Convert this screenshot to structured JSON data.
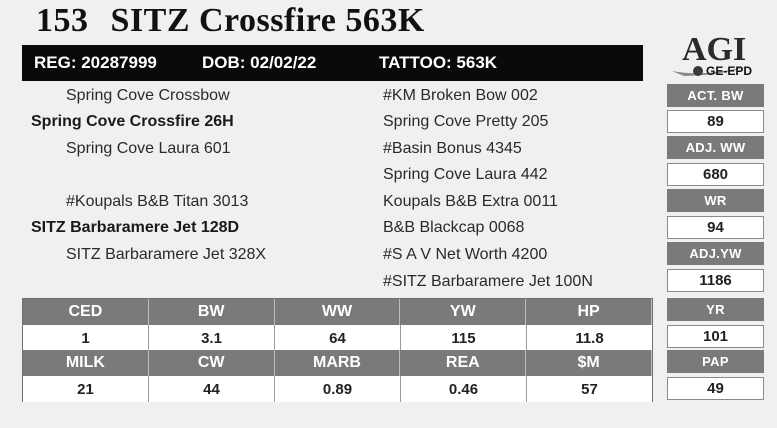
{
  "header": {
    "lot_number": "153",
    "animal_name": "SITZ Crossfire 563K"
  },
  "id_bar": {
    "reg": "REG: 20287999",
    "dob": "DOB: 02/02/22",
    "tattoo": "TATTOO: 563K"
  },
  "logo": {
    "text": "AGI",
    "subtext": "GE-EPD"
  },
  "pedigree": {
    "sire_sire": "Spring Cove Crossbow",
    "sire": "Spring Cove Crossfire 26H",
    "sire_dam": "Spring Cove Laura 601",
    "dam_sire": "#Koupals B&B Titan 3013",
    "dam": "SITZ Barbaramere Jet 128D",
    "dam_dam": "SITZ Barbaramere Jet 328X",
    "g3": [
      "#KM Broken Bow 002",
      "Spring Cove Pretty 205",
      "#Basin Bonus 4345",
      "Spring Cove Laura 442",
      "Koupals B&B Extra 0011",
      "B&B Blackcap 0068",
      "#S A V Net Worth 4200",
      "#SITZ Barbaramere Jet 100N"
    ]
  },
  "side_stats": [
    {
      "label": "ACT. BW",
      "value": "89"
    },
    {
      "label": "ADJ. WW",
      "value": "680"
    },
    {
      "label": "WR",
      "value": "94"
    },
    {
      "label": "ADJ.YW",
      "value": "1186"
    },
    {
      "label": "YR",
      "value": "101"
    },
    {
      "label": "PAP",
      "value": "49"
    }
  ],
  "epd_rows": [
    {
      "headers": [
        "CED",
        "BW",
        "WW",
        "YW",
        "HP"
      ],
      "values": [
        "1",
        "3.1",
        "64",
        "115",
        "11.8"
      ]
    },
    {
      "headers": [
        "MILK",
        "CW",
        "MARB",
        "REA",
        "$M"
      ],
      "values": [
        "21",
        "44",
        "0.89",
        "0.46",
        "57"
      ]
    }
  ]
}
